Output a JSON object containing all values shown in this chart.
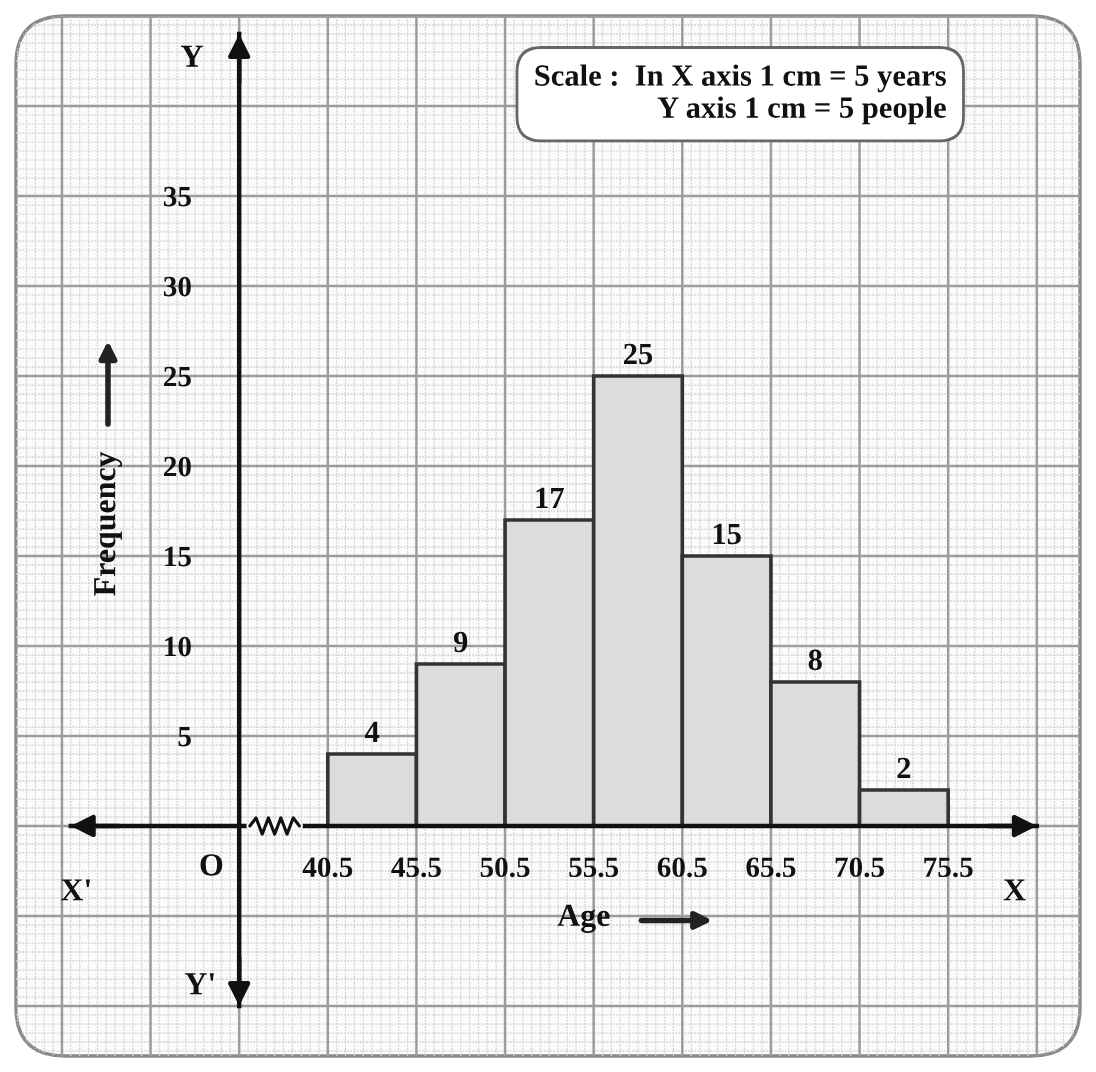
{
  "chart_data": {
    "type": "histogram",
    "bins": [
      40.5,
      45.5,
      50.5,
      55.5,
      60.5,
      65.5,
      70.5,
      75.5
    ],
    "values": [
      4,
      9,
      17,
      25,
      15,
      8,
      2
    ],
    "color": "#dcdcdc",
    "xlabel": "Age",
    "ylabel": "Frequency",
    "xlim": [
      26,
      80.5
    ],
    "ylim": [
      -10,
      44
    ],
    "xticks": [
      40.5,
      45.5,
      50.5,
      55.5,
      60.5,
      65.5,
      70.5,
      75.5
    ],
    "yticks": [
      5,
      10,
      15,
      20,
      25,
      30,
      35
    ],
    "grid": true,
    "data_labels": true,
    "annotations": [
      "Scale :  In X axis 1 cm = 5 years\nY axis 1 cm = 5 people",
      "X'",
      "X",
      "Y",
      "Y'",
      "O"
    ]
  }
}
